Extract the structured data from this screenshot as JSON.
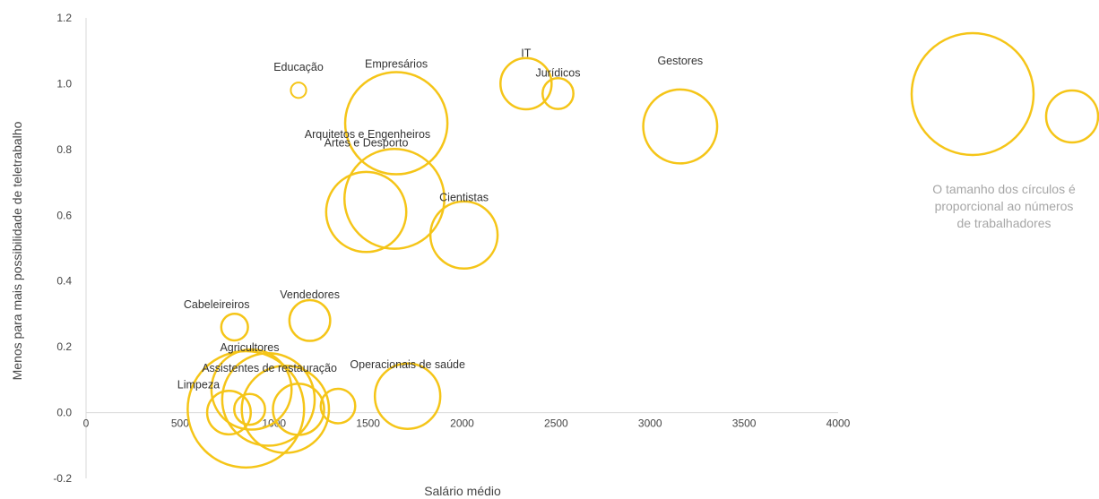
{
  "chart_data": {
    "type": "scatter",
    "title": "",
    "xlabel": "Salário médio",
    "ylabel": "Menos para mais possibilidade de teletrabalho",
    "xlim": [
      0,
      4000
    ],
    "ylim": [
      -0.2,
      1.2
    ],
    "x_ticks": [
      0,
      500,
      1000,
      1500,
      2000,
      2500,
      3000,
      3500,
      4000
    ],
    "y_ticks": [
      -0.2,
      0.0,
      0.2,
      0.4,
      0.6,
      0.8,
      1.0,
      1.2
    ],
    "x_tick_labels": [
      "0",
      "500",
      "1000",
      "1500",
      "2000",
      "2500",
      "3000",
      "3500",
      "4000"
    ],
    "y_tick_labels": [
      "-0.2",
      "0.0",
      "0.2",
      "0.4",
      "0.6",
      "0.8",
      "1.0",
      "1.2"
    ],
    "grid": false,
    "bubble_color": "#f5c518",
    "points": [
      {
        "label": "Educação",
        "x": 1130,
        "y": 0.98,
        "size": 1
      },
      {
        "label": "Empresários",
        "x": 1650,
        "y": 0.88,
        "size": 44
      },
      {
        "label": "IT",
        "x": 2340,
        "y": 1.0,
        "size": 11
      },
      {
        "label": "Jurídicos",
        "x": 2510,
        "y": 0.97,
        "size": 4
      },
      {
        "label": "Gestores",
        "x": 3160,
        "y": 0.87,
        "size": 23
      },
      {
        "label": "Artes e Desporto",
        "x": 1490,
        "y": 0.61,
        "size": 27
      },
      {
        "label": "Arquitetos e Engenheiros",
        "x": 1640,
        "y": 0.65,
        "size": 42
      },
      {
        "label": "Cientistas",
        "x": 2010,
        "y": 0.54,
        "size": 19
      },
      {
        "label": "Cabeleireiros",
        "x": 790,
        "y": 0.26,
        "size": 3
      },
      {
        "label": "Vendedores",
        "x": 1190,
        "y": 0.28,
        "size": 7
      },
      {
        "label": "Agricultores",
        "x": 870,
        "y": 0.01,
        "size": 4
      },
      {
        "label": "Operacionais de saúde",
        "x": 1710,
        "y": 0.05,
        "size": 18
      },
      {
        "label": "Limpeza",
        "x": 760,
        "y": 0.0,
        "size": 8
      },
      {
        "label": "Assistentes de restauração",
        "x": 880,
        "y": 0.07,
        "size": 27
      },
      {
        "label": "",
        "x": 850,
        "y": 0.01,
        "size": 57
      },
      {
        "label": "",
        "x": 970,
        "y": 0.04,
        "size": 36
      },
      {
        "label": "",
        "x": 1060,
        "y": 0.01,
        "size": 32
      },
      {
        "label": "",
        "x": 1130,
        "y": 0.01,
        "size": 11
      },
      {
        "label": "",
        "x": 1340,
        "y": 0.02,
        "size": 5
      }
    ]
  },
  "legend": {
    "text_lines": [
      "O tamanho dos círculos é",
      "proporcional ao números",
      "de trabalhadores"
    ]
  }
}
